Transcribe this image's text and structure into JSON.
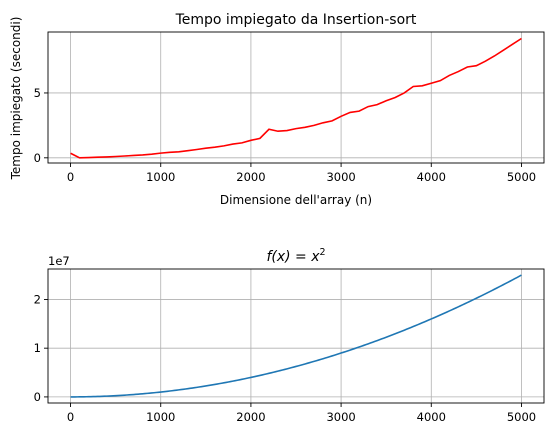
{
  "chart_data": [
    {
      "type": "line",
      "title": "Tempo impiegato da Insertion-sort",
      "xlabel": "Dimensione dell'array (n)",
      "ylabel": "Tempo impiegato (secondi)",
      "xlim": [
        -250,
        5250
      ],
      "ylim": [
        -0.4,
        9.7
      ],
      "xticks": [
        0,
        1000,
        2000,
        3000,
        4000,
        5000
      ],
      "yticks": [
        0,
        5
      ],
      "grid": true,
      "series": [
        {
          "color": "#ff0000",
          "x": [
            0,
            100,
            200,
            300,
            400,
            500,
            600,
            700,
            800,
            900,
            1000,
            1100,
            1200,
            1300,
            1400,
            1500,
            1600,
            1700,
            1800,
            1900,
            2000,
            2100,
            2200,
            2300,
            2400,
            2500,
            2600,
            2700,
            2800,
            2900,
            3000,
            3100,
            3200,
            3300,
            3400,
            3500,
            3600,
            3700,
            3800,
            3900,
            4000,
            4100,
            4200,
            4300,
            4400,
            4500,
            4600,
            4700,
            4800,
            4900,
            5000
          ],
          "y": [
            0.35,
            0.0,
            0.02,
            0.05,
            0.07,
            0.1,
            0.14,
            0.18,
            0.22,
            0.28,
            0.36,
            0.42,
            0.46,
            0.55,
            0.64,
            0.74,
            0.82,
            0.92,
            1.06,
            1.15,
            1.35,
            1.5,
            2.2,
            2.05,
            2.1,
            2.25,
            2.35,
            2.5,
            2.7,
            2.85,
            3.2,
            3.5,
            3.6,
            3.95,
            4.1,
            4.4,
            4.65,
            5.0,
            5.5,
            5.55,
            5.75,
            5.95,
            6.35,
            6.65,
            7.0,
            7.1,
            7.45,
            7.85,
            8.3,
            8.75,
            9.2
          ]
        }
      ]
    },
    {
      "type": "line",
      "title": "f(x) = x²",
      "title_italic": "f(x)",
      "title_rest": " = ",
      "title_var": "x",
      "title_exp": "2",
      "offset_text": "1e7",
      "xlabel": "",
      "ylabel": "",
      "xlim": [
        -250,
        5250
      ],
      "ylim": [
        -0.125,
        2.625
      ],
      "xticks": [
        0,
        1000,
        2000,
        3000,
        4000,
        5000
      ],
      "yticks": [
        0,
        1,
        2
      ],
      "grid": true,
      "series": [
        {
          "color": "#1f77b4",
          "function": "x^2 / 1e7",
          "x_range": [
            0,
            5000
          ]
        }
      ]
    }
  ]
}
